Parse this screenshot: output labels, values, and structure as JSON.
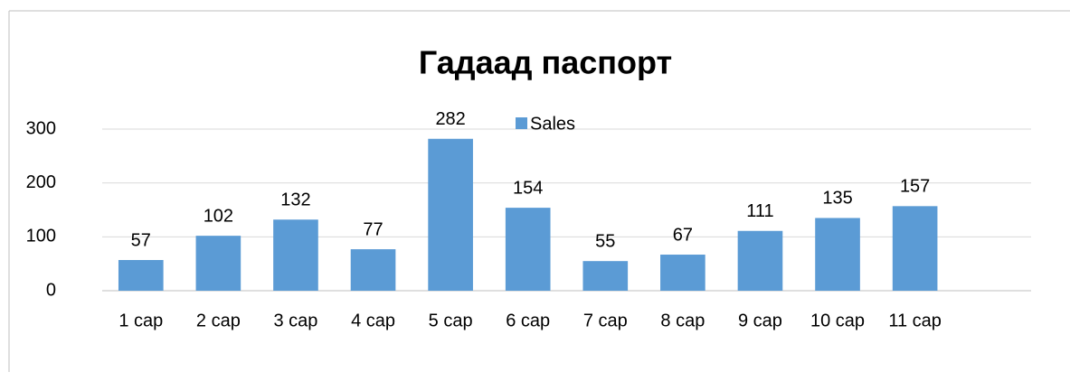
{
  "chart_data": {
    "type": "bar",
    "title": "Гадаад паспорт",
    "categories": [
      "1 сар",
      "2 сар",
      "3 сар",
      "4 сар",
      "5 сар",
      "6 сар",
      "7 сар",
      "8 сар",
      "9 сар",
      "10 сар",
      "11 сар",
      null
    ],
    "series": [
      {
        "name": "Sales",
        "color": "#5b9bd5",
        "values": [
          57,
          102,
          132,
          77,
          282,
          154,
          55,
          67,
          111,
          135,
          157,
          null
        ]
      }
    ],
    "ylim": [
      0,
      300
    ],
    "yticks": [
      0,
      100,
      200,
      300
    ],
    "grid": true,
    "legend": "top",
    "data_labels": true
  }
}
